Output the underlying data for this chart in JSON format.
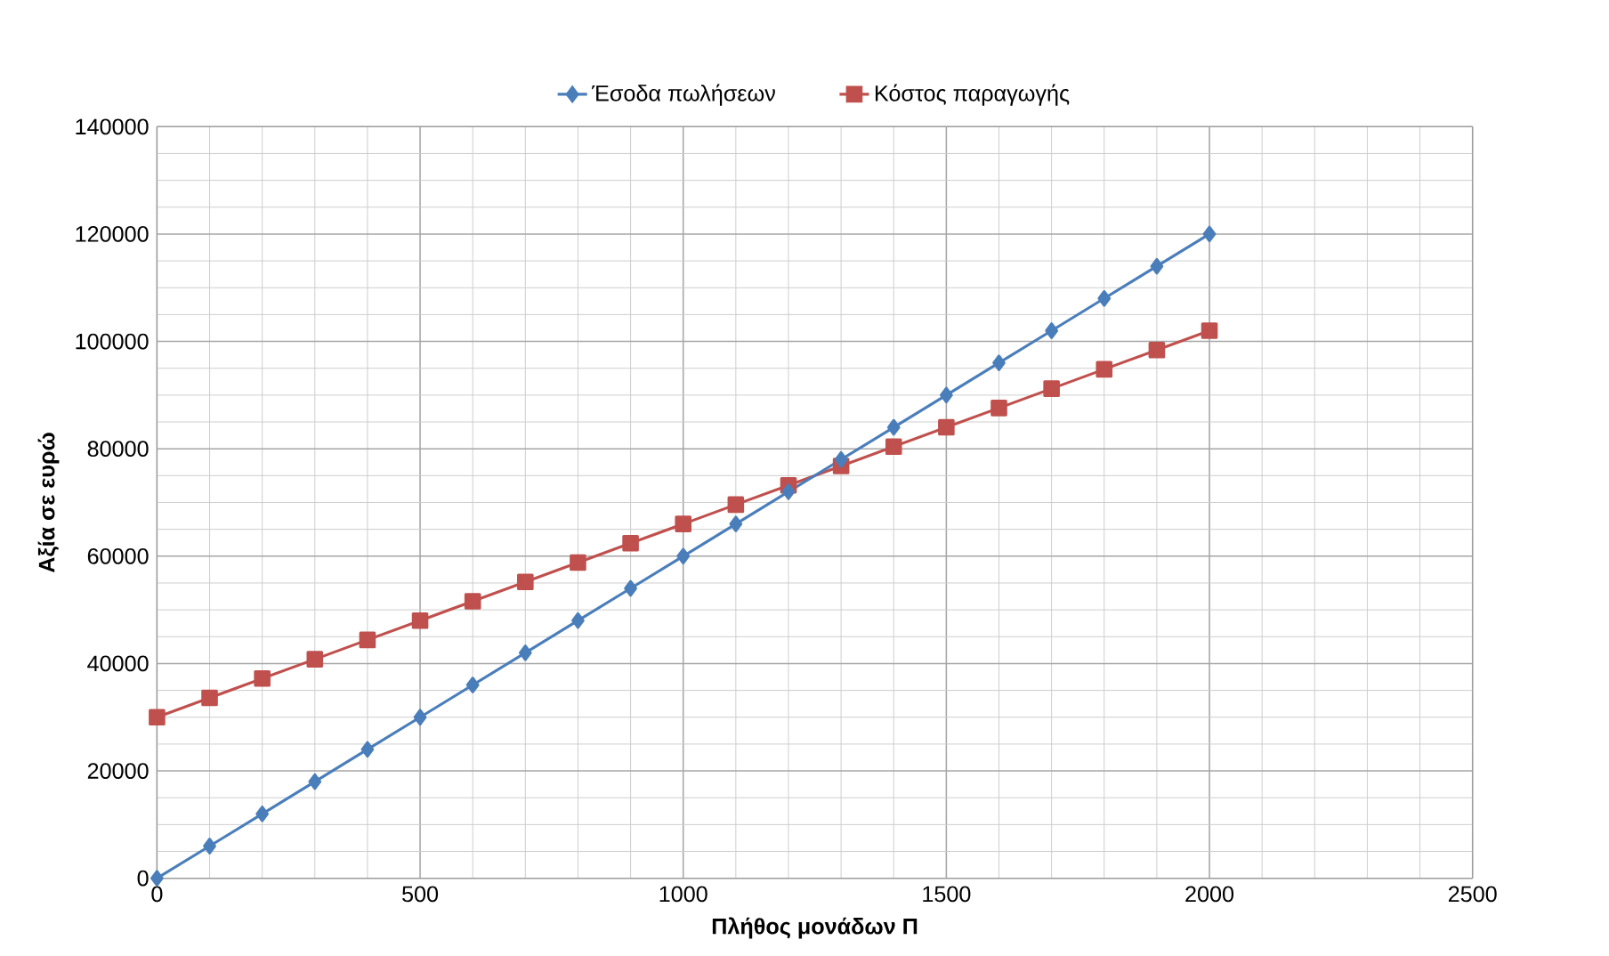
{
  "chart_data": {
    "type": "line",
    "xlabel": "Πλήθος μονάδων Π",
    "ylabel": "Αξία σε ευρώ",
    "x": [
      0,
      100,
      200,
      300,
      400,
      500,
      600,
      700,
      800,
      900,
      1000,
      1100,
      1200,
      1300,
      1400,
      1500,
      1600,
      1700,
      1800,
      1900,
      2000
    ],
    "series": [
      {
        "name": "Έσοδα πωλήσεων",
        "color": "#4a7ebb",
        "marker": "diamond",
        "values": [
          0,
          6000,
          12000,
          18000,
          24000,
          30000,
          36000,
          42000,
          48000,
          54000,
          60000,
          66000,
          72000,
          78000,
          84000,
          90000,
          96000,
          102000,
          108000,
          114000,
          120000
        ]
      },
      {
        "name": "Κόστος παραγωγής",
        "color": "#c0504d",
        "marker": "square",
        "values": [
          30000,
          33600,
          37200,
          40800,
          44400,
          48000,
          51600,
          55200,
          58800,
          62400,
          66000,
          69600,
          73200,
          76800,
          80400,
          84000,
          87600,
          91200,
          94800,
          98400,
          102000
        ]
      }
    ],
    "xlim": [
      0,
      2500
    ],
    "xticks": [
      0,
      500,
      1000,
      1500,
      2000,
      2500
    ],
    "ylim": [
      0,
      140000
    ],
    "yticks": [
      0,
      20000,
      40000,
      60000,
      80000,
      100000,
      120000,
      140000
    ],
    "grid": true,
    "legend": "top",
    "line_style": "solid"
  }
}
